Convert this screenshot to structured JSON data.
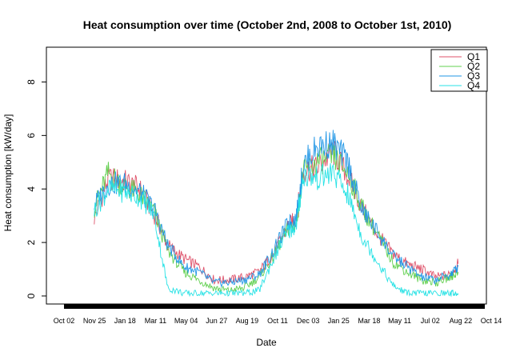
{
  "chart_data": {
    "type": "line",
    "title": "Heat consumption over time (October 2nd, 2008 to October 1st, 2010)",
    "xlabel": "Date",
    "ylabel": "Heat consumption [kW/day]",
    "x_ticks": [
      "Oct 02",
      "Nov 25",
      "Jan 18",
      "Mar 11",
      "May 04",
      "Jun 27",
      "Aug 19",
      "Oct 11",
      "Dec 03",
      "Jan 25",
      "Mar 18",
      "May 11",
      "Jul 02",
      "Aug 22",
      "Oct 14"
    ],
    "y_ticks": [
      "0",
      "2",
      "4",
      "6",
      "8"
    ],
    "ylim": [
      -0.3,
      9.3
    ],
    "grid": false,
    "legend_position": "top-right",
    "series": [
      {
        "name": "Q1",
        "color": "#DF536B",
        "x": [
          "2008-11-25",
          "2008-12-20",
          "2009-01-18",
          "2009-02-14",
          "2009-03-11",
          "2009-04-05",
          "2009-05-04",
          "2009-05-30",
          "2009-06-27",
          "2009-07-23",
          "2009-08-19",
          "2009-09-15",
          "2009-10-11",
          "2009-11-05",
          "2009-11-20",
          "2009-12-03",
          "2009-12-28",
          "2010-01-25",
          "2010-02-20",
          "2010-03-18",
          "2010-04-14",
          "2010-05-11",
          "2010-06-06",
          "2010-07-02",
          "2010-07-27",
          "2010-08-22",
          "2010-09-05"
        ],
        "y": [
          2.9,
          4.4,
          4.3,
          4.0,
          3.1,
          1.9,
          1.4,
          1.1,
          0.6,
          0.6,
          0.7,
          0.9,
          1.6,
          2.6,
          2.9,
          4.7,
          4.8,
          5.4,
          4.5,
          3.3,
          2.3,
          1.6,
          1.2,
          1.0,
          0.7,
          0.8,
          1.2
        ]
      },
      {
        "name": "Q2",
        "color": "#61D04F",
        "x": [
          "2008-11-25",
          "2008-12-20",
          "2009-01-18",
          "2009-02-14",
          "2009-03-11",
          "2009-04-05",
          "2009-05-04",
          "2009-05-30",
          "2009-06-27",
          "2009-07-23",
          "2009-08-19",
          "2009-09-15",
          "2009-10-11",
          "2009-11-05",
          "2009-11-20",
          "2009-12-03",
          "2009-12-28",
          "2010-01-25",
          "2010-02-20",
          "2010-03-18",
          "2010-04-14",
          "2010-05-11",
          "2010-06-06",
          "2010-07-02",
          "2010-07-27",
          "2010-08-22",
          "2010-09-05"
        ],
        "y": [
          3.3,
          4.6,
          4.1,
          3.8,
          3.2,
          1.7,
          0.9,
          0.6,
          0.3,
          0.2,
          0.3,
          0.7,
          1.5,
          2.5,
          2.7,
          4.6,
          5.0,
          5.2,
          4.6,
          3.3,
          2.3,
          1.3,
          0.9,
          0.6,
          0.5,
          0.7,
          0.9
        ]
      },
      {
        "name": "Q3",
        "color": "#2297E6",
        "x": [
          "2008-11-25",
          "2008-12-20",
          "2009-01-18",
          "2009-02-14",
          "2009-03-11",
          "2009-04-05",
          "2009-05-04",
          "2009-05-30",
          "2009-06-27",
          "2009-07-23",
          "2009-08-19",
          "2009-09-15",
          "2009-10-11",
          "2009-11-05",
          "2009-11-20",
          "2009-12-03",
          "2009-12-28",
          "2010-01-25",
          "2010-02-20",
          "2010-03-18",
          "2010-04-14",
          "2010-05-11",
          "2010-06-06",
          "2010-07-02",
          "2010-07-27",
          "2010-08-22",
          "2010-09-05"
        ],
        "y": [
          3.4,
          4.2,
          4.2,
          3.9,
          3.3,
          1.9,
          1.1,
          0.9,
          0.5,
          0.5,
          0.6,
          0.8,
          1.7,
          2.7,
          2.9,
          4.9,
          5.6,
          5.7,
          5.0,
          3.2,
          2.4,
          1.5,
          1.1,
          0.7,
          0.6,
          0.8,
          1.1
        ]
      },
      {
        "name": "Q4",
        "color": "#28E2E5",
        "x": [
          "2008-11-25",
          "2008-12-20",
          "2009-01-18",
          "2009-02-14",
          "2009-03-11",
          "2009-04-05",
          "2009-05-04",
          "2009-05-30",
          "2009-06-27",
          "2009-07-23",
          "2009-08-19",
          "2009-09-15",
          "2009-10-11",
          "2009-11-05",
          "2009-11-20",
          "2009-12-03",
          "2009-12-28",
          "2010-01-25",
          "2010-02-20",
          "2010-03-18",
          "2010-04-14",
          "2010-05-11",
          "2010-06-06",
          "2010-07-02",
          "2010-07-27",
          "2010-08-22",
          "2010-09-05"
        ],
        "y": [
          3.2,
          4.0,
          3.9,
          3.7,
          3.1,
          0.3,
          0.1,
          0.1,
          0.1,
          0.1,
          0.1,
          0.2,
          1.4,
          2.4,
          2.6,
          4.5,
          4.4,
          4.6,
          3.8,
          2.2,
          1.3,
          0.4,
          0.1,
          0.1,
          0.1,
          0.1,
          0.1
        ]
      }
    ]
  }
}
